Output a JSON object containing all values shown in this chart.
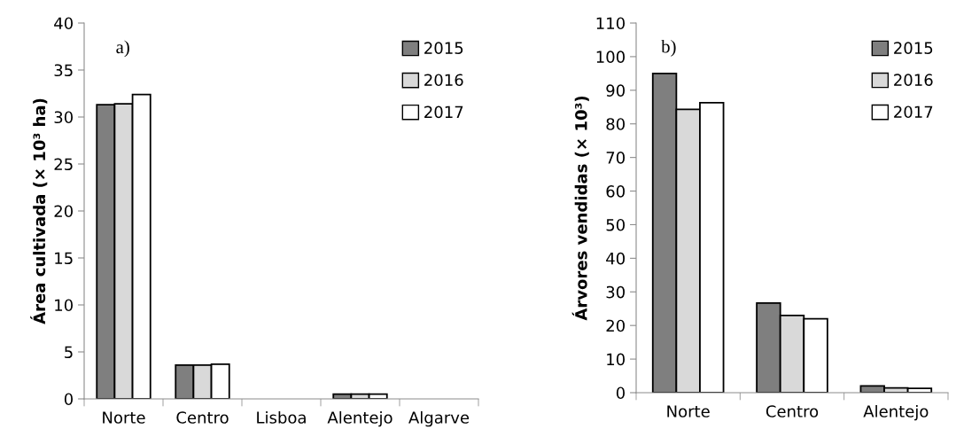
{
  "chart_data": [
    {
      "type": "bar",
      "ylabel": "Área cultivada (× 10³ ha)",
      "annotations": [
        "a)"
      ],
      "categories": [
        "Norte",
        "Centro",
        "Lisboa",
        "Alentejo",
        "Algarve"
      ],
      "series": [
        {
          "name": "2015",
          "color": "#7f7f7f",
          "values": [
            31.3,
            3.6,
            0,
            0.5,
            0
          ]
        },
        {
          "name": "2016",
          "color": "#d9d9d9",
          "values": [
            31.4,
            3.6,
            0,
            0.5,
            0
          ]
        },
        {
          "name": "2017",
          "color": "#ffffff",
          "values": [
            32.4,
            3.7,
            0,
            0.5,
            0
          ]
        }
      ],
      "ylim": [
        0,
        40
      ],
      "yticks": [
        0,
        5,
        10,
        15,
        20,
        25,
        30,
        35,
        40
      ],
      "grid": false,
      "legend": "top right"
    },
    {
      "type": "bar",
      "ylabel": "Árvores vendidas (× 10³)",
      "annotations": [
        "b)"
      ],
      "categories": [
        "Norte",
        "Centro",
        "Alentejo"
      ],
      "series": [
        {
          "name": "2015",
          "color": "#7f7f7f",
          "values": [
            95,
            26.7,
            2
          ]
        },
        {
          "name": "2016",
          "color": "#d9d9d9",
          "values": [
            84.3,
            23,
            1.4
          ]
        },
        {
          "name": "2017",
          "color": "#ffffff",
          "values": [
            86.3,
            22,
            1.3
          ]
        }
      ],
      "ylim": [
        0,
        110
      ],
      "yticks": [
        0,
        10,
        20,
        30,
        40,
        50,
        60,
        70,
        80,
        90,
        100,
        110
      ],
      "grid": false,
      "legend": "top right"
    }
  ]
}
